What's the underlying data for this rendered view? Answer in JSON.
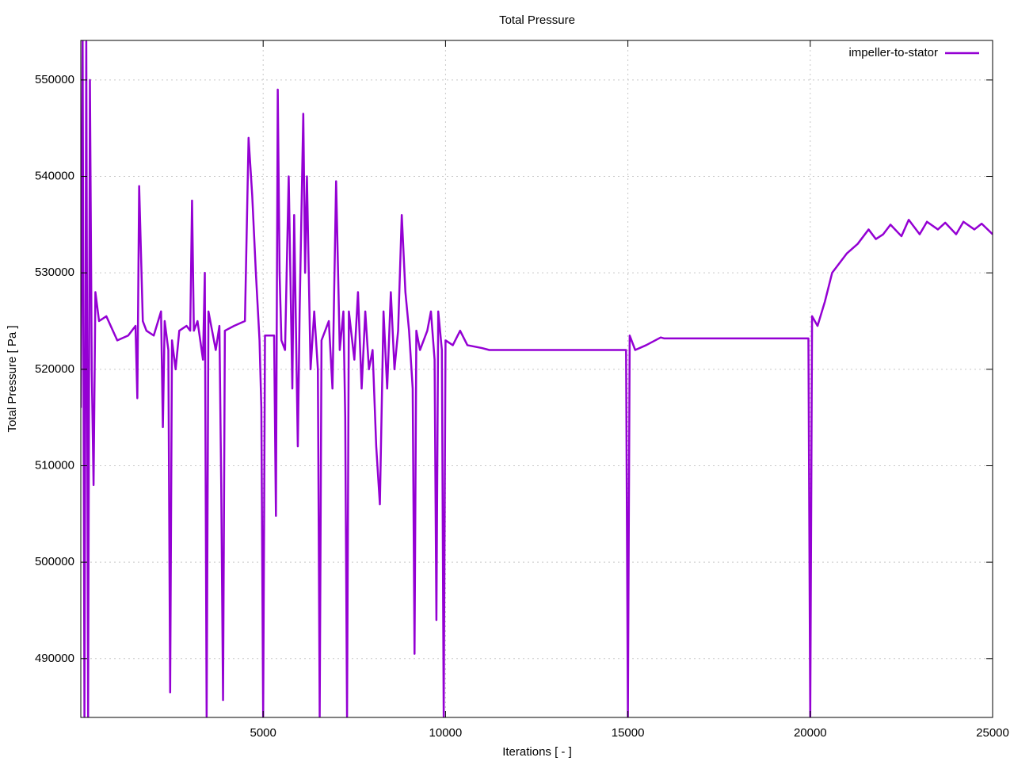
{
  "chart_data": {
    "type": "line",
    "title": "Total Pressure",
    "x_label": "Iterations [ - ]",
    "y_label": "Total Pressure [ Pa ]",
    "xlim": [
      0,
      25000
    ],
    "ylim": [
      483900,
      554100
    ],
    "xticks": [
      5000,
      10000,
      15000,
      20000,
      25000
    ],
    "yticks": [
      490000,
      500000,
      510000,
      520000,
      530000,
      540000,
      550000
    ],
    "grid": true,
    "legend": "top-right",
    "x": [
      0,
      50,
      100,
      150,
      200,
      250,
      300,
      350,
      400,
      500,
      700,
      1000,
      1300,
      1500,
      1550,
      1600,
      1650,
      1700,
      1800,
      2000,
      2200,
      2250,
      2300,
      2400,
      2450,
      2500,
      2600,
      2700,
      2900,
      3000,
      3050,
      3100,
      3200,
      3350,
      3400,
      3450,
      3500,
      3600,
      3700,
      3800,
      3850,
      3900,
      3950,
      4200,
      4500,
      4600,
      4700,
      4800,
      4900,
      4950,
      5000,
      5050,
      5300,
      5350,
      5400,
      5450,
      5500,
      5600,
      5700,
      5800,
      5850,
      5950,
      6000,
      6100,
      6150,
      6200,
      6300,
      6400,
      6500,
      6550,
      6600,
      6800,
      6900,
      7000,
      7100,
      7200,
      7250,
      7300,
      7350,
      7500,
      7600,
      7700,
      7800,
      7900,
      8000,
      8100,
      8200,
      8300,
      8400,
      8500,
      8600,
      8700,
      8800,
      8900,
      9000,
      9100,
      9150,
      9200,
      9300,
      9500,
      9600,
      9700,
      9750,
      9800,
      9900,
      9950,
      10000,
      10200,
      10400,
      10600,
      11000,
      11200,
      14950,
      15000,
      15050,
      15200,
      15500,
      15900,
      16000,
      19950,
      20000,
      20050,
      20200,
      20400,
      20600,
      20800,
      21000,
      21300,
      21600,
      21800,
      22000,
      22200,
      22500,
      22700,
      23000,
      23200,
      23500,
      23700,
      24000,
      24200,
      24500,
      24700,
      25000
    ],
    "series": [
      {
        "name": "impeller-to-stator",
        "color": "#9400d3",
        "values": [
          516000,
          554100,
          484000,
          554000,
          484000,
          550000,
          520000,
          508000,
          528000,
          525000,
          525500,
          523000,
          523500,
          524500,
          517000,
          539000,
          532000,
          525000,
          524000,
          523500,
          526000,
          514000,
          525000,
          522000,
          486500,
          523000,
          520000,
          524000,
          524500,
          524000,
          537500,
          524000,
          525000,
          521000,
          530000,
          484000,
          526000,
          524000,
          522000,
          524500,
          508000,
          485700,
          524000,
          524500,
          525000,
          544000,
          538000,
          530000,
          523000,
          516000,
          484000,
          523500,
          523500,
          504800,
          549000,
          530000,
          523000,
          522000,
          540000,
          518000,
          536000,
          512000,
          526000,
          546500,
          530000,
          540000,
          520000,
          526000,
          520000,
          484000,
          523000,
          525000,
          518000,
          539500,
          522000,
          526000,
          515000,
          484000,
          526000,
          521000,
          528000,
          518000,
          526000,
          520000,
          522000,
          512000,
          506000,
          526000,
          518000,
          528000,
          520000,
          524000,
          536000,
          528000,
          524000,
          518000,
          490500,
          524000,
          522000,
          524000,
          526000,
          521000,
          494000,
          526000,
          522000,
          484000,
          523000,
          522500,
          524000,
          522500,
          522200,
          522000,
          522000,
          484000,
          523500,
          522000,
          522500,
          523300,
          523200,
          523200,
          484000,
          525500,
          524500,
          527000,
          530000,
          531000,
          532000,
          533000,
          534500,
          533500,
          534000,
          535000,
          533800,
          535500,
          534000,
          535300,
          534500,
          535200,
          534000,
          535300,
          534500,
          535100,
          534000
        ]
      }
    ]
  }
}
